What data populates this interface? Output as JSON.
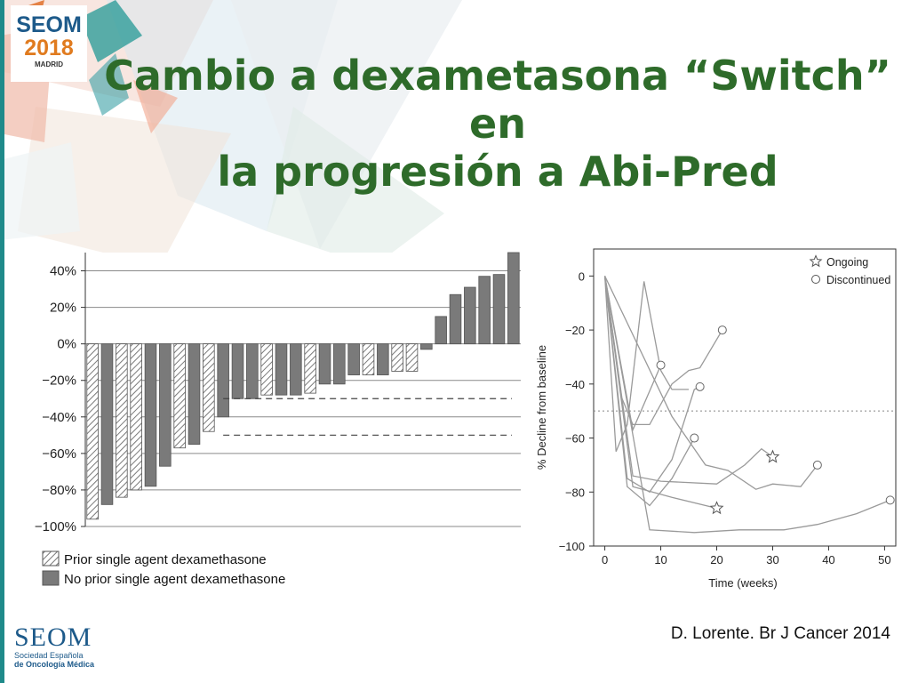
{
  "logo": {
    "line1": "SEOM",
    "line2": "2018",
    "line3": "MADRID"
  },
  "title": {
    "line1": "Cambio a dexametasona “Switch” en",
    "line2": "la progresión a Abi-Pred"
  },
  "citation": "D. Lorente. Br J Cancer 2014",
  "footer_logo": {
    "name": "SEOM",
    "line1": "Sociedad Española",
    "line2": "de Oncología Médica"
  },
  "colors": {
    "title": "#2e6b2a",
    "bar_dark": "#7a7a7a",
    "bar_hatch": "#8a8a8a",
    "line": "#9a9a9a",
    "accent_teal": "#1f8a8a"
  },
  "chart_data": [
    {
      "type": "bar",
      "subtype": "waterfall",
      "ylim": [
        -100,
        50
      ],
      "yticks": [
        40,
        20,
        0,
        -20,
        -40,
        -60,
        -80,
        -100
      ],
      "ytick_labels": [
        "40%",
        "20%",
        "0%",
        "−20%",
        "−40%",
        "−60%",
        "−80%",
        "−100%"
      ],
      "grid": true,
      "reference_lines": [
        -30,
        -50
      ],
      "values": [
        -96,
        -88,
        -84,
        -80,
        -78,
        -67,
        -57,
        -55,
        -48,
        -40,
        -30,
        -30,
        -28,
        -28,
        -28,
        -27,
        -22,
        -22,
        -17,
        -17,
        -17,
        -15,
        -15,
        -3,
        15,
        27,
        31,
        37,
        38,
        50
      ],
      "groups": [
        "prior",
        "none",
        "prior",
        "prior",
        "none",
        "none",
        "prior",
        "none",
        "prior",
        "none",
        "none",
        "none",
        "prior",
        "none",
        "none",
        "prior",
        "none",
        "none",
        "none",
        "prior",
        "none",
        "prior",
        "prior",
        "none",
        "none",
        "none",
        "none",
        "none",
        "none",
        "none"
      ],
      "legend": [
        {
          "key": "prior",
          "label": "Prior single agent dexamethasone"
        },
        {
          "key": "none",
          "label": "No prior single agent dexamethasone"
        }
      ],
      "legend_position": "bottom-left"
    },
    {
      "type": "line",
      "xlabel": "Time (weeks)",
      "ylabel": "% Decline from baseline",
      "xlim": [
        -2,
        52
      ],
      "ylim": [
        -100,
        10
      ],
      "xticks": [
        0,
        10,
        20,
        30,
        40,
        50
      ],
      "yticks": [
        0,
        -20,
        -40,
        -60,
        -80,
        -100
      ],
      "ytick_labels": [
        "0",
        "−20",
        "−40",
        "−60",
        "−80",
        "−100"
      ],
      "reference_lines": [
        -50
      ],
      "legend": [
        {
          "marker": "star",
          "label": "Ongoing"
        },
        {
          "marker": "circle",
          "label": "Discontinued"
        }
      ],
      "legend_position": "top-right",
      "series": [
        {
          "points": [
            [
              0,
              0
            ],
            [
              2,
              -65
            ],
            [
              4,
              -55
            ],
            [
              7,
              -2
            ],
            [
              10,
              -35
            ],
            [
              12,
              -42
            ],
            [
              15,
              -42
            ]
          ],
          "end_marker": "none"
        },
        {
          "points": [
            [
              0,
              0
            ],
            [
              3,
              -45
            ],
            [
              5,
              -55
            ],
            [
              8,
              -55
            ],
            [
              12,
              -40
            ],
            [
              15,
              -35
            ],
            [
              17,
              -34
            ],
            [
              21,
              -20
            ]
          ],
          "end_marker": "circle"
        },
        {
          "points": [
            [
              0,
              0
            ],
            [
              5,
              -57
            ],
            [
              10,
              -33
            ]
          ],
          "end_marker": "circle"
        },
        {
          "points": [
            [
              0,
              0
            ],
            [
              4,
              -75
            ],
            [
              8,
              -80
            ],
            [
              12,
              -68
            ],
            [
              16,
              -42
            ],
            [
              17,
              -41
            ]
          ],
          "end_marker": "circle"
        },
        {
          "points": [
            [
              0,
              0
            ],
            [
              4,
              -78
            ],
            [
              8,
              -85
            ],
            [
              12,
              -75
            ],
            [
              16,
              -60
            ]
          ],
          "end_marker": "circle"
        },
        {
          "points": [
            [
              0,
              0
            ],
            [
              5,
              -74
            ],
            [
              10,
              -76
            ],
            [
              20,
              -77
            ],
            [
              25,
              -70
            ],
            [
              28,
              -64
            ],
            [
              30,
              -67
            ]
          ],
          "end_marker": "star"
        },
        {
          "points": [
            [
              0,
              0
            ],
            [
              12,
              -52
            ],
            [
              18,
              -70
            ],
            [
              22,
              -72
            ],
            [
              27,
              -79
            ],
            [
              30,
              -77
            ],
            [
              35,
              -78
            ],
            [
              38,
              -70
            ]
          ],
          "end_marker": "circle"
        },
        {
          "points": [
            [
              0,
              0
            ],
            [
              5,
              -78
            ],
            [
              12,
              -82
            ],
            [
              20,
              -86
            ]
          ],
          "end_marker": "star"
        },
        {
          "points": [
            [
              0,
              0
            ],
            [
              8,
              -94
            ],
            [
              16,
              -95
            ],
            [
              24,
              -94
            ],
            [
              32,
              -94
            ],
            [
              38,
              -92
            ],
            [
              45,
              -88
            ],
            [
              51,
              -83
            ]
          ],
          "end_marker": "circle"
        }
      ]
    }
  ]
}
